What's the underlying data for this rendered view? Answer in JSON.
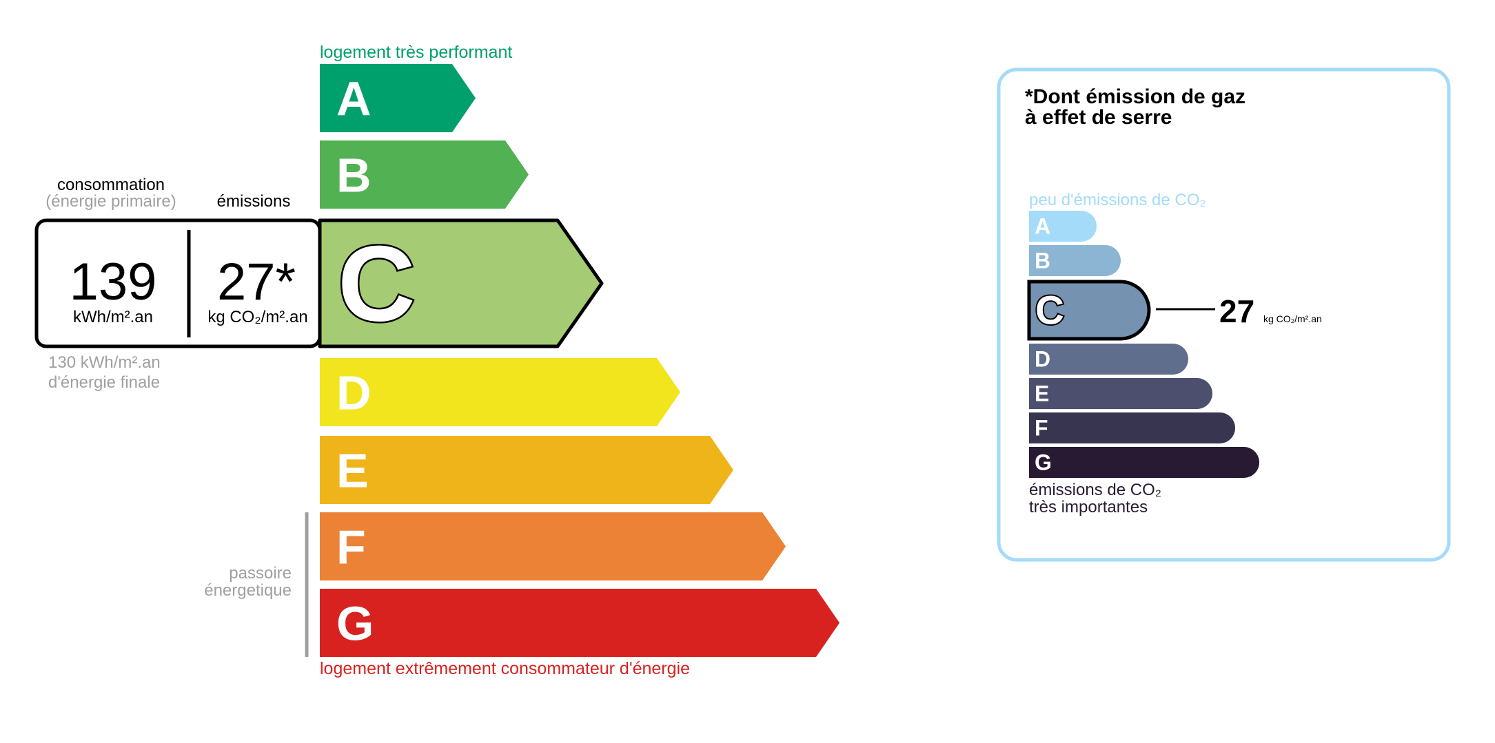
{
  "energy": {
    "top_label": "logement très performant",
    "bottom_label": "logement extrêmement consommateur d'énergie",
    "top_color": "#00a06d",
    "bottom_color": "#d7221f",
    "current_class": "C",
    "classes": [
      {
        "letter": "A",
        "color": "#00a06d"
      },
      {
        "letter": "B",
        "color": "#52b153"
      },
      {
        "letter": "C",
        "color": "#a5cc74"
      },
      {
        "letter": "D",
        "color": "#f2e51d"
      },
      {
        "letter": "E",
        "color": "#efb41a"
      },
      {
        "letter": "F",
        "color": "#eb8235"
      },
      {
        "letter": "G",
        "color": "#d7221f"
      }
    ],
    "consumption_label": "consommation",
    "consumption_sublabel": "(énergie primaire)",
    "emissions_label": "émissions",
    "consumption_value": "139",
    "consumption_unit": "kWh/m².an",
    "emissions_value": "27*",
    "emissions_unit": "kg CO₂/m².an",
    "final_energy_value": "130 kWh/m².an",
    "final_energy_label": "d'énergie finale",
    "passoire_line1": "passoire",
    "passoire_line2": "énergetique"
  },
  "ges": {
    "title_line1": "*Dont émission de gaz",
    "title_line2": "à effet de serre",
    "top_label": "peu d'émissions de CO₂",
    "bottom_label_line1": "émissions de CO₂",
    "bottom_label_line2": "très importantes",
    "border_color": "#a4dbf8",
    "current_class": "C",
    "value": "27",
    "unit": "kg CO₂/m².an",
    "classes": [
      {
        "letter": "A",
        "color": "#a4dbf8"
      },
      {
        "letter": "B",
        "color": "#8cb4d3"
      },
      {
        "letter": "C",
        "color": "#7692b1"
      },
      {
        "letter": "D",
        "color": "#5f6e8d"
      },
      {
        "letter": "E",
        "color": "#4c4f6e"
      },
      {
        "letter": "F",
        "color": "#383550"
      },
      {
        "letter": "G",
        "color": "#281a32"
      }
    ]
  }
}
